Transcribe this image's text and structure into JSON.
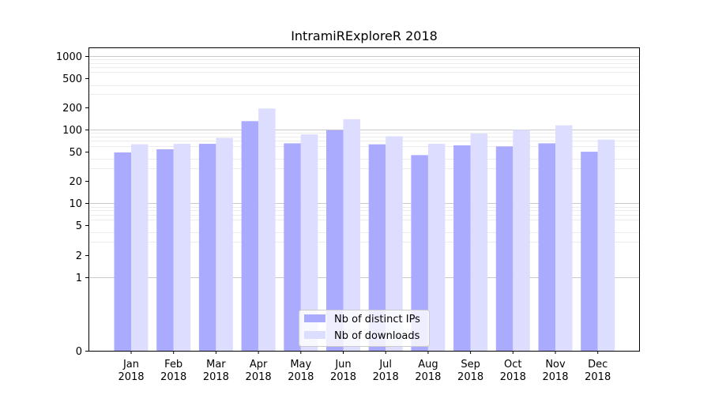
{
  "chart_data": {
    "type": "bar",
    "title": "IntramiRExploreR 2018",
    "xlabel": "",
    "ylabel": "",
    "yscale": "symlog",
    "ylim": [
      0,
      1300
    ],
    "ytick_labels": [
      "0",
      "1",
      "2",
      "5",
      "10",
      "20",
      "50",
      "100",
      "200",
      "500",
      "1000"
    ],
    "yticks": [
      0,
      1,
      2,
      5,
      10,
      20,
      50,
      100,
      200,
      500,
      1000
    ],
    "grid": "horizontal",
    "categories": [
      "Jan\n2018",
      "Feb\n2018",
      "Mar\n2018",
      "Apr\n2018",
      "May\n2018",
      "Jun\n2018",
      "Jul\n2018",
      "Aug\n2018",
      "Sep\n2018",
      "Oct\n2018",
      "Nov\n2018",
      "Dec\n2018"
    ],
    "series": [
      {
        "name": "Nb of distinct IPs",
        "color": "#aaaaff",
        "values": [
          49,
          54,
          64,
          130,
          65,
          98,
          63,
          45,
          61,
          59,
          65,
          50
        ]
      },
      {
        "name": "Nb of downloads",
        "color": "#ddddff",
        "values": [
          63,
          64,
          77,
          193,
          86,
          138,
          81,
          64,
          88,
          99,
          114,
          73
        ]
      }
    ],
    "legend": "bottom-center"
  }
}
